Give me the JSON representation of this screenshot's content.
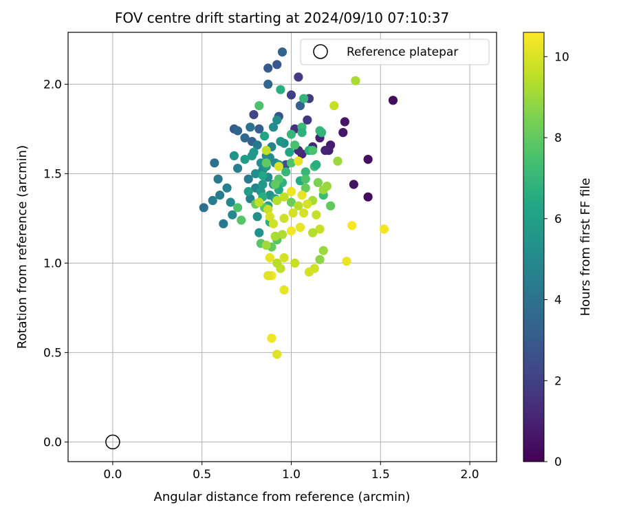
{
  "chart_data": {
    "type": "scatter",
    "title": "FOV centre drift starting at 2024/09/10 07:10:37",
    "xlabel": "Angular distance from reference (arcmin)",
    "ylabel": "Rotation from reference (arcmin)",
    "xlim": [
      -0.25,
      2.15
    ],
    "ylim": [
      -0.11,
      2.29
    ],
    "xticks": [
      "0.0",
      "0.5",
      "1.0",
      "1.5",
      "2.0"
    ],
    "yticks": [
      "0.0",
      "0.5",
      "1.0",
      "1.5",
      "2.0"
    ],
    "grid": true,
    "legend": {
      "placement": "top-right",
      "entries": [
        "Reference platepar"
      ]
    },
    "reference_point": {
      "x": 0.0,
      "y": 0.0
    },
    "colorbar": {
      "label": "Hours from first FF file",
      "range": [
        0,
        10.6
      ],
      "ticks": [
        "0",
        "2",
        "4",
        "6",
        "8",
        "10"
      ],
      "colormap": "viridis"
    },
    "series": [
      {
        "points": [
          [
            1.57,
            1.91
          ],
          [
            1.43,
            1.58
          ],
          [
            1.43,
            1.37
          ],
          [
            1.35,
            1.44
          ],
          [
            1.3,
            1.79
          ],
          [
            1.29,
            1.73
          ],
          [
            1.22,
            1.66
          ],
          [
            1.21,
            1.63
          ],
          [
            1.19,
            1.63
          ],
          [
            1.16,
            1.7
          ],
          [
            1.06,
            1.61
          ],
          [
            1.12,
            1.65
          ],
          [
            1.04,
            1.63
          ],
          [
            1.02,
            1.75
          ],
          [
            1.09,
            1.8
          ],
          [
            1.04,
            2.04
          ],
          [
            1.1,
            1.92
          ],
          [
            1.0,
            1.94
          ],
          [
            0.92,
            2.11
          ],
          [
            0.87,
            2.09
          ],
          [
            0.95,
            2.18
          ],
          [
            0.87,
            2.0
          ],
          [
            0.93,
            1.82
          ],
          [
            0.79,
            1.83
          ],
          [
            0.68,
            1.75
          ],
          [
            0.7,
            1.74
          ],
          [
            0.82,
            1.75
          ],
          [
            0.78,
            1.68
          ],
          [
            0.74,
            1.7
          ],
          [
            0.77,
            1.76
          ],
          [
            1.05,
            1.88
          ],
          [
            0.97,
            1.55
          ],
          [
            0.57,
            1.56
          ],
          [
            0.59,
            1.47
          ],
          [
            0.64,
            1.42
          ],
          [
            0.6,
            1.38
          ],
          [
            0.56,
            1.35
          ],
          [
            0.51,
            1.31
          ],
          [
            0.62,
            1.22
          ],
          [
            0.67,
            1.27
          ],
          [
            0.66,
            1.34
          ],
          [
            0.7,
            1.53
          ],
          [
            0.76,
            1.47
          ],
          [
            0.8,
            1.42
          ],
          [
            0.84,
            1.52
          ],
          [
            0.86,
            1.6
          ],
          [
            0.88,
            1.59
          ],
          [
            0.91,
            1.56
          ],
          [
            0.83,
            1.56
          ],
          [
            0.8,
            1.5
          ],
          [
            0.87,
            1.48
          ],
          [
            0.81,
            1.26
          ],
          [
            0.82,
            1.17
          ],
          [
            0.77,
            1.36
          ],
          [
            0.81,
            1.66
          ],
          [
            0.89,
            1.65
          ],
          [
            0.9,
            1.76
          ],
          [
            0.92,
            1.8
          ],
          [
            0.96,
            1.67
          ],
          [
            0.93,
            1.55
          ],
          [
            0.9,
            1.44
          ],
          [
            0.88,
            1.38
          ],
          [
            0.84,
            1.44
          ],
          [
            0.83,
            1.4
          ],
          [
            0.86,
            1.54
          ],
          [
            0.78,
            1.6
          ],
          [
            0.74,
            1.58
          ],
          [
            0.68,
            1.6
          ],
          [
            0.79,
            1.62
          ],
          [
            0.85,
            1.71
          ],
          [
            1.06,
            1.76
          ],
          [
            1.0,
            1.72
          ],
          [
            1.06,
            1.73
          ],
          [
            1.16,
            1.74
          ],
          [
            1.13,
            1.54
          ],
          [
            1.08,
            1.51
          ],
          [
            0.97,
            1.51
          ],
          [
            0.95,
            1.45
          ],
          [
            0.91,
            1.36
          ],
          [
            0.84,
            1.49
          ],
          [
            0.99,
            1.62
          ],
          [
            1.1,
            1.63
          ],
          [
            1.05,
            1.46
          ],
          [
            1.14,
            1.55
          ],
          [
            1.02,
            1.66
          ],
          [
            0.94,
            1.68
          ],
          [
            0.76,
            1.4
          ],
          [
            0.87,
            1.32
          ],
          [
            0.93,
            1.41
          ],
          [
            0.84,
            1.37
          ],
          [
            0.88,
            1.23
          ],
          [
            0.94,
            1.97
          ],
          [
            1.07,
            1.92
          ],
          [
            0.82,
            1.88
          ],
          [
            1.17,
            1.73
          ],
          [
            1.12,
            1.63
          ],
          [
            1.08,
            1.47
          ],
          [
            1.0,
            1.56
          ],
          [
            0.93,
            1.47
          ],
          [
            0.85,
            1.31
          ],
          [
            1.18,
            1.38
          ],
          [
            0.7,
            1.31
          ],
          [
            0.72,
            1.24
          ],
          [
            0.8,
            1.33
          ],
          [
            0.86,
            1.56
          ],
          [
            0.91,
            1.44
          ],
          [
            0.83,
            1.11
          ],
          [
            0.89,
            1.09
          ],
          [
            0.92,
            1.13
          ],
          [
            1.0,
            1.34
          ],
          [
            1.08,
            1.42
          ],
          [
            1.15,
            1.45
          ],
          [
            1.22,
            1.32
          ],
          [
            1.36,
            2.02
          ],
          [
            1.24,
            1.88
          ],
          [
            1.26,
            1.57
          ],
          [
            1.2,
            1.43
          ],
          [
            1.18,
            1.41
          ],
          [
            1.12,
            1.35
          ],
          [
            1.04,
            1.32
          ],
          [
            0.96,
            1.37
          ],
          [
            0.92,
            1.35
          ],
          [
            0.87,
            1.3
          ],
          [
            0.82,
            1.34
          ],
          [
            0.88,
            1.26
          ],
          [
            0.9,
            1.22
          ],
          [
            0.96,
            1.25
          ],
          [
            1.01,
            1.28
          ],
          [
            1.07,
            1.28
          ],
          [
            1.14,
            1.27
          ],
          [
            1.16,
            1.19
          ],
          [
            1.12,
            1.17
          ],
          [
            1.05,
            1.2
          ],
          [
            1.0,
            1.18
          ],
          [
            0.95,
            1.16
          ],
          [
            0.91,
            1.15
          ],
          [
            0.86,
            1.1
          ],
          [
            1.18,
            1.07
          ],
          [
            1.16,
            1.02
          ],
          [
            1.13,
            0.97
          ],
          [
            1.1,
            0.95
          ],
          [
            1.02,
            1.0
          ],
          [
            0.96,
            1.03
          ],
          [
            0.94,
            0.97
          ],
          [
            0.92,
            1.0
          ],
          [
            0.88,
            1.03
          ],
          [
            0.89,
            0.93
          ],
          [
            0.87,
            0.93
          ],
          [
            0.96,
            0.85
          ],
          [
            0.89,
            0.58
          ],
          [
            0.92,
            0.49
          ],
          [
            1.31,
            1.01
          ],
          [
            1.52,
            1.19
          ],
          [
            1.34,
            1.21
          ],
          [
            1.0,
            1.4
          ],
          [
            1.04,
            1.57
          ],
          [
            0.93,
            1.54
          ],
          [
            0.86,
            1.63
          ],
          [
            1.09,
            1.33
          ],
          [
            1.06,
            1.38
          ]
        ],
        "hours": [
          0.3,
          0.4,
          0.3,
          0.5,
          0.6,
          0.7,
          0.8,
          0.9,
          1.0,
          0.9,
          1.1,
          1.2,
          1.3,
          1.5,
          1.7,
          1.8,
          1.8,
          2.0,
          2.9,
          3.0,
          3.4,
          3.5,
          2.7,
          2.2,
          3.0,
          3.4,
          3.2,
          3.3,
          3.6,
          3.9,
          3.2,
          2.6,
          3.8,
          4.2,
          4.6,
          4.4,
          4.5,
          3.9,
          4.3,
          5.0,
          4.9,
          4.5,
          4.4,
          4.8,
          4.9,
          5.0,
          5.0,
          5.0,
          5.2,
          5.1,
          5.0,
          5.2,
          5.3,
          4.6,
          4.3,
          4.8,
          5.0,
          5.1,
          5.2,
          5.3,
          5.4,
          5.5,
          5.6,
          5.6,
          5.7,
          5.6,
          5.8,
          5.4,
          5.6,
          6.2,
          7.2,
          7.0,
          6.8,
          7.0,
          7.2,
          7.0,
          7.0,
          6.8,
          6.0,
          6.3,
          6.3,
          6.6,
          6.5,
          6.6,
          7.5,
          5.5,
          5.9,
          6.0,
          6.4,
          6.6,
          6.6,
          6.6,
          6.9,
          7.6,
          6.9,
          7.5,
          7.6,
          7.6,
          7.7,
          7.8,
          7.2,
          7.6,
          7.8,
          8.2,
          8.0,
          8.0,
          7.8,
          8.0,
          7.8,
          8.2,
          8.1,
          8.5,
          8.0,
          9.2,
          9.7,
          9.0,
          9.0,
          9.0,
          9.2,
          9.5,
          9.6,
          9.4,
          9.7,
          9.6,
          10.0,
          9.8,
          9.8,
          9.9,
          9.9,
          9.7,
          9.7,
          9.4,
          10.2,
          10.4,
          9.3,
          9.2,
          9.1,
          9.0,
          8.8,
          9.8,
          9.9,
          9.7,
          9.9,
          9.6,
          9.5,
          10.2,
          10.4,
          10.1,
          10.2,
          10.4,
          10.1,
          10.3,
          10.4,
          10.5,
          10.3,
          10.2,
          10.0,
          9.6,
          9.9,
          10.2
        ]
      }
    ]
  }
}
